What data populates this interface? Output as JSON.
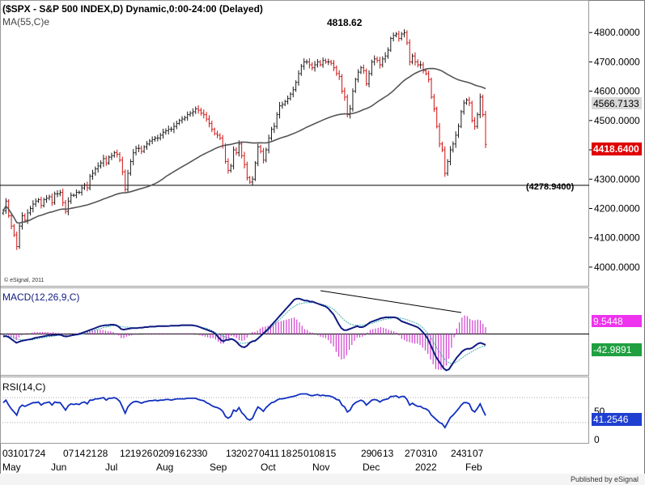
{
  "header": {
    "title": "($SPX - S&P 500 INDEX,D) Dynamic,0:00-24:00 (Delayed)",
    "ma_label": "MA(55,C)e",
    "peak_label": "4818.62",
    "support_label": "(4278.9400)",
    "copyright": "© eSignal, 2011"
  },
  "footer": {
    "published": "Published by eSignal",
    "date_row": [
      "03",
      "10",
      "17",
      "24",
      "07",
      "14",
      "21",
      "28",
      "12",
      "19",
      "26",
      "02",
      "09",
      "16",
      "23",
      "30",
      "13",
      "20",
      "27",
      "04",
      "11",
      "18",
      "25",
      "01",
      "08",
      "15",
      "29",
      "06",
      "13",
      "27",
      "03",
      "10",
      "24",
      "31",
      "07"
    ],
    "month_labels": [
      "May",
      "Jun",
      "Jul",
      "Aug",
      "Sep",
      "Oct",
      "Nov",
      "Dec",
      "2022",
      "Jan",
      "Feb"
    ]
  },
  "colors": {
    "up": "#1a1a1a",
    "down": "#d01010",
    "ma": "#555555",
    "macd": "#101a80",
    "signal": "#40b0b0",
    "hist": "#d040d0",
    "rsi": "#1030c0",
    "last_price_bg": "#e00000",
    "ma_badge_bg": "#d8d8d8",
    "macd_badge_bg": "#ee33ee",
    "signal_badge_bg": "#20a040",
    "rsi_badge_bg": "#1f3fd0"
  },
  "chart_data": [
    {
      "type": "candlestick",
      "title": "($SPX - S&P 500 INDEX,D) Dynamic,0:00-24:00 (Delayed)",
      "ylim": [
        3950,
        4900
      ],
      "yticks": [
        "4800.0000",
        "4700.0000",
        "4600.0000",
        "4500.0000",
        "4400.0000",
        "4300.0000",
        "4200.0000",
        "4100.0000",
        "4000.0000"
      ],
      "support_level": 4278.94,
      "peak": 4818.62,
      "last_price": "4418.6400",
      "ma_value": "4566.7133",
      "series": [
        {
          "name": "$SPX",
          "close": [
            4192,
            4225,
            4175,
            4140,
            4110,
            4070,
            4140,
            4175,
            4160,
            4185,
            4200,
            4215,
            4225,
            4230,
            4210,
            4230,
            4235,
            4240,
            4220,
            4250,
            4250,
            4255,
            4220,
            4190,
            4225,
            4245,
            4245,
            4255,
            4255,
            4270,
            4280,
            4270,
            4310,
            4320,
            4335,
            4345,
            4355,
            4370,
            4355,
            4375,
            4380,
            4390,
            4385,
            4365,
            4325,
            4265,
            4320,
            4360,
            4390,
            4405,
            4405,
            4395,
            4410,
            4420,
            4430,
            4435,
            4440,
            4440,
            4450,
            4460,
            4465,
            4470,
            4470,
            4480,
            4490,
            4500,
            4505,
            4510,
            4520,
            4525,
            4530,
            4540,
            4535,
            4525,
            4520,
            4505,
            4490,
            4470,
            4455,
            4450,
            4440,
            4415,
            4360,
            4330,
            4345,
            4400,
            4390,
            4420,
            4380,
            4350,
            4305,
            4290,
            4300,
            4355,
            4410,
            4395,
            4365,
            4400,
            4440,
            4470,
            4480,
            4520,
            4550,
            4555,
            4565,
            4575,
            4590,
            4605,
            4630,
            4660,
            4685,
            4700,
            4700,
            4690,
            4680,
            4690,
            4700,
            4690,
            4705,
            4700,
            4700,
            4695,
            4680,
            4660,
            4650,
            4600,
            4580,
            4520,
            4540,
            4600,
            4640,
            4665,
            4680,
            4670,
            4625,
            4660,
            4700,
            4710,
            4705,
            4690,
            4710,
            4720,
            4740,
            4780,
            4790,
            4795,
            4780,
            4795,
            4800,
            4765,
            4700,
            4720,
            4700,
            4690,
            4690,
            4670,
            4660,
            4640,
            4580,
            4540,
            4480,
            4420,
            4400,
            4320,
            4360,
            4400,
            4420,
            4450,
            4480,
            4530,
            4560,
            4570,
            4560,
            4500,
            4480,
            4520,
            4580,
            4520,
            4418.64
          ]
        }
      ]
    },
    {
      "type": "line",
      "title": "MACD(12,26,9,C)",
      "ylim": [
        -80,
        90
      ],
      "badges": [
        "9.5448",
        "-42.9891"
      ],
      "series": [
        {
          "name": "MACD",
          "values": [
            -5,
            -4,
            -6,
            -10,
            -14,
            -18,
            -16,
            -14,
            -13,
            -12,
            -11,
            -10,
            -8,
            -7,
            -6,
            -5,
            -4,
            -3,
            -3,
            -2,
            -2,
            -1,
            -2,
            -4,
            -5,
            -4,
            -3,
            -2,
            -1,
            0,
            2,
            4,
            6,
            8,
            10,
            12,
            14,
            16,
            17,
            18,
            18,
            19,
            19,
            18,
            15,
            10,
            9,
            10,
            11,
            12,
            12,
            12,
            13,
            13,
            14,
            14,
            15,
            15,
            15,
            16,
            16,
            16,
            16,
            16,
            17,
            17,
            17,
            17,
            18,
            18,
            18,
            18,
            18,
            17,
            16,
            14,
            12,
            10,
            8,
            6,
            4,
            0,
            -6,
            -12,
            -15,
            -12,
            -12,
            -10,
            -12,
            -16,
            -22,
            -26,
            -27,
            -24,
            -18,
            -15,
            -14,
            -10,
            -5,
            0,
            5,
            10,
            16,
            22,
            28,
            34,
            40,
            46,
            52,
            58,
            64,
            70,
            72,
            72,
            70,
            68,
            68,
            66,
            66,
            64,
            62,
            60,
            58,
            56,
            52,
            46,
            40,
            30,
            20,
            12,
            8,
            8,
            10,
            12,
            14,
            16,
            14,
            14,
            16,
            20,
            24,
            26,
            28,
            30,
            32,
            33,
            34,
            34,
            34,
            34,
            33,
            30,
            26,
            24,
            22,
            20,
            18,
            16,
            14,
            10,
            4,
            -2,
            -10,
            -22,
            -34,
            -46,
            -54,
            -62,
            -70,
            -74,
            -72,
            -64,
            -56,
            -48,
            -42,
            -36,
            -32,
            -30,
            -30,
            -28,
            -24,
            -20,
            -18,
            -20,
            -22
          ]
        },
        {
          "name": "Signal",
          "values": [
            -3,
            -3,
            -4,
            -5,
            -7,
            -9,
            -11,
            -12,
            -12,
            -12,
            -12,
            -12,
            -11,
            -10,
            -9,
            -8,
            -7,
            -6,
            -5,
            -5,
            -4,
            -3,
            -3,
            -3,
            -3,
            -4,
            -4,
            -3,
            -2,
            -2,
            -1,
            0,
            1,
            3,
            4,
            6,
            8,
            10,
            11,
            13,
            14,
            15,
            16,
            17,
            17,
            16,
            15,
            14,
            14,
            14,
            13,
            13,
            13,
            13,
            13,
            13,
            14,
            14,
            14,
            15,
            15,
            15,
            15,
            15,
            16,
            16,
            16,
            16,
            17,
            17,
            17,
            17,
            17,
            17,
            17,
            16,
            15,
            14,
            13,
            12,
            10,
            8,
            5,
            2,
            -1,
            -3,
            -5,
            -7,
            -8,
            -10,
            -13,
            -16,
            -18,
            -19,
            -19,
            -18,
            -17,
            -15,
            -13,
            -10,
            -6,
            -2,
            2,
            6,
            11,
            16,
            21,
            26,
            31,
            36,
            41,
            46,
            51,
            55,
            58,
            61,
            62,
            63,
            64,
            64,
            64,
            64,
            63,
            62,
            61,
            60,
            58,
            56,
            53,
            49,
            44,
            39,
            33,
            28,
            24,
            21,
            19,
            18,
            18,
            18,
            18,
            19,
            20,
            21,
            22,
            24,
            26,
            28,
            29,
            30,
            31,
            32,
            33,
            33,
            33,
            32,
            31,
            30,
            28,
            26,
            24,
            22,
            19,
            15,
            10,
            5,
            -2,
            -10,
            -19,
            -28,
            -36,
            -44,
            -51,
            -56,
            -59,
            -60,
            -59,
            -56,
            -52,
            -48,
            -44,
            -41,
            -38,
            -35,
            -32,
            -29,
            -27,
            -25,
            -24
          ]
        }
      ]
    },
    {
      "type": "line",
      "title": "RSI(14,C)",
      "ylim": [
        0,
        100
      ],
      "yticks": [
        "50",
        "0"
      ],
      "badge": "41.2546",
      "series": [
        {
          "name": "RSI",
          "values": [
            62,
            66,
            58,
            52,
            47,
            42,
            54,
            58,
            56,
            58,
            60,
            62,
            62,
            63,
            58,
            61,
            62,
            63,
            58,
            63,
            62,
            62,
            56,
            50,
            57,
            60,
            59,
            60,
            59,
            62,
            63,
            60,
            66,
            66,
            68,
            68,
            69,
            70,
            66,
            69,
            69,
            70,
            68,
            64,
            55,
            45,
            55,
            60,
            63,
            64,
            63,
            61,
            63,
            64,
            65,
            65,
            66,
            65,
            66,
            66,
            67,
            67,
            66,
            67,
            68,
            68,
            68,
            68,
            69,
            69,
            69,
            69,
            67,
            66,
            65,
            62,
            60,
            57,
            55,
            54,
            52,
            48,
            40,
            37,
            40,
            50,
            48,
            54,
            46,
            42,
            36,
            34,
            37,
            47,
            55,
            52,
            48,
            54,
            58,
            62,
            63,
            66,
            68,
            68,
            69,
            70,
            71,
            72,
            73,
            75,
            76,
            76,
            76,
            74,
            73,
            74,
            75,
            73,
            74,
            73,
            73,
            72,
            70,
            67,
            66,
            58,
            55,
            47,
            50,
            58,
            62,
            64,
            66,
            64,
            58,
            62,
            66,
            67,
            66,
            63,
            66,
            67,
            68,
            72,
            72,
            73,
            70,
            72,
            72,
            67,
            58,
            61,
            58,
            56,
            56,
            53,
            52,
            49,
            42,
            38,
            34,
            30,
            28,
            22,
            30,
            38,
            42,
            47,
            52,
            58,
            62,
            62,
            60,
            50,
            47,
            53,
            60,
            50,
            41.2546
          ]
        }
      ]
    }
  ]
}
